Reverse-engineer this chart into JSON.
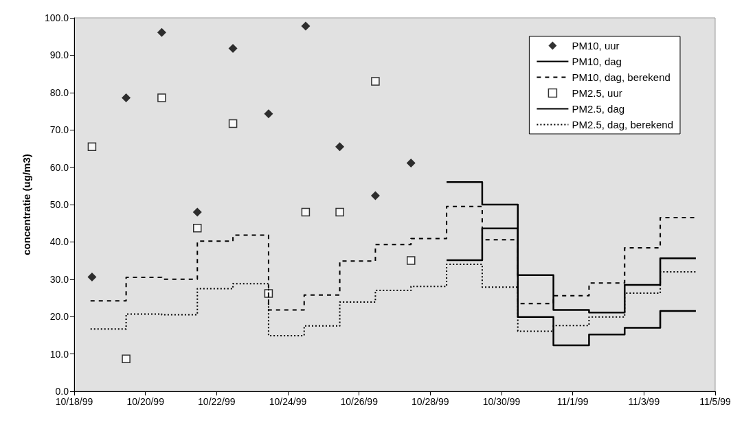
{
  "chart_data": {
    "type": "line",
    "ylabel": "concentratie (ug/m3)",
    "ylim": [
      0,
      100
    ],
    "yticks": [
      {
        "value": 0,
        "label": "0.0"
      },
      {
        "value": 10,
        "label": "10.0"
      },
      {
        "value": 20,
        "label": "20.0"
      },
      {
        "value": 30,
        "label": "30.0"
      },
      {
        "value": 40,
        "label": "40.0"
      },
      {
        "value": 50,
        "label": "50.0"
      },
      {
        "value": 60,
        "label": "60.0"
      },
      {
        "value": 70,
        "label": "70.0"
      },
      {
        "value": 80,
        "label": "80.0"
      },
      {
        "value": 90,
        "label": "90.0"
      },
      {
        "value": 100,
        "label": "100.0"
      }
    ],
    "xlim": [
      "1999-10-18",
      "1999-11-05"
    ],
    "xticks": [
      {
        "value": "1999-10-18",
        "label": "10/18/99"
      },
      {
        "value": "1999-10-20",
        "label": "10/20/99"
      },
      {
        "value": "1999-10-22",
        "label": "10/22/99"
      },
      {
        "value": "1999-10-24",
        "label": "10/24/99"
      },
      {
        "value": "1999-10-26",
        "label": "10/26/99"
      },
      {
        "value": "1999-10-28",
        "label": "10/28/99"
      },
      {
        "value": "1999-10-30",
        "label": "10/30/99"
      },
      {
        "value": "1999-11-01",
        "label": "11/1/99"
      },
      {
        "value": "1999-11-03",
        "label": "11/3/99"
      },
      {
        "value": "1999-11-05",
        "label": "11/5/99"
      }
    ],
    "grid": false,
    "legend": "top right",
    "series": [
      {
        "name": "PM10, uur",
        "type": "scatter",
        "marker": "diamond",
        "color": "#000000",
        "x": [
          "1999-10-18T12:00",
          "1999-10-19T11:00",
          "1999-10-20T11:00",
          "1999-10-21T11:00",
          "1999-10-22T11:00",
          "1999-10-23T11:00",
          "1999-10-24T12:00",
          "1999-10-25T11:00",
          "1999-10-26T11:00",
          "1999-10-27T11:00"
        ],
        "values": [
          30.6,
          78.6,
          96.1,
          48.0,
          91.8,
          74.3,
          97.8,
          65.5,
          52.4,
          61.1
        ]
      },
      {
        "name": "PM10, dag",
        "type": "step",
        "line_style": "solid",
        "color": "#000000",
        "x": [
          "1999-10-28T11:00",
          "1999-10-29T11:00",
          "1999-10-30T11:00",
          "1999-10-31T11:00",
          "1999-11-01T11:00",
          "1999-11-02T11:00",
          "1999-11-03T11:00",
          "1999-11-04T11:00"
        ],
        "values": [
          56.0,
          50.0,
          31.1,
          21.8,
          21.1,
          28.5,
          35.6,
          35.6
        ]
      },
      {
        "name": "PM10, dag, berekend",
        "type": "step",
        "line_style": "dashed",
        "color": "#000000",
        "x": [
          "1999-10-18T11:00",
          "1999-10-19T11:00",
          "1999-10-20T11:00",
          "1999-10-21T11:00",
          "1999-10-22T11:00",
          "1999-10-23T11:00",
          "1999-10-24T11:00",
          "1999-10-25T11:00",
          "1999-10-26T11:00",
          "1999-10-27T11:00",
          "1999-10-28T11:00",
          "1999-10-29T11:00",
          "1999-10-30T11:00",
          "1999-10-31T11:00",
          "1999-11-01T11:00",
          "1999-11-02T11:00",
          "1999-11-03T11:00",
          "1999-11-04T11:00"
        ],
        "values": [
          24.2,
          30.5,
          30.0,
          40.2,
          41.8,
          21.8,
          25.8,
          34.9,
          39.3,
          40.9,
          49.5,
          40.6,
          23.5,
          25.6,
          29.0,
          38.4,
          46.5,
          46.5
        ]
      },
      {
        "name": "PM2.5, uur",
        "type": "scatter",
        "marker": "square",
        "color": "#000000",
        "x": [
          "1999-10-18T12:00",
          "1999-10-19T11:00",
          "1999-10-20T11:00",
          "1999-10-21T11:00",
          "1999-10-22T11:00",
          "1999-10-23T11:00",
          "1999-10-24T12:00",
          "1999-10-25T11:00",
          "1999-10-26T11:00",
          "1999-10-27T11:00"
        ],
        "values": [
          65.5,
          8.7,
          78.6,
          43.7,
          71.7,
          26.2,
          48.0,
          48.0,
          83.0,
          35.0
        ]
      },
      {
        "name": "PM2.5, dag",
        "type": "step",
        "line_style": "solid",
        "color": "#000000",
        "x": [
          "1999-10-28T11:00",
          "1999-10-29T11:00",
          "1999-10-30T11:00",
          "1999-10-31T11:00",
          "1999-11-01T11:00",
          "1999-11-02T11:00",
          "1999-11-03T11:00",
          "1999-11-04T11:00"
        ],
        "values": [
          35.1,
          43.6,
          19.9,
          12.3,
          15.2,
          17.0,
          21.5,
          21.5
        ]
      },
      {
        "name": "PM2.5, dag, berekend",
        "type": "step",
        "line_style": "dotted",
        "color": "#000000",
        "x": [
          "1999-10-18T11:00",
          "1999-10-19T11:00",
          "1999-10-20T11:00",
          "1999-10-21T11:00",
          "1999-10-22T11:00",
          "1999-10-23T11:00",
          "1999-10-24T11:00",
          "1999-10-25T11:00",
          "1999-10-26T11:00",
          "1999-10-27T11:00",
          "1999-10-28T11:00",
          "1999-10-29T11:00",
          "1999-10-30T11:00",
          "1999-10-31T11:00",
          "1999-11-01T11:00",
          "1999-11-02T11:00",
          "1999-11-03T11:00",
          "1999-11-04T11:00"
        ],
        "values": [
          16.7,
          20.7,
          20.5,
          27.5,
          28.8,
          14.9,
          17.5,
          23.9,
          27.0,
          28.1,
          34.0,
          27.9,
          16.1,
          17.6,
          19.9,
          26.3,
          32.0,
          32.0
        ]
      }
    ]
  }
}
